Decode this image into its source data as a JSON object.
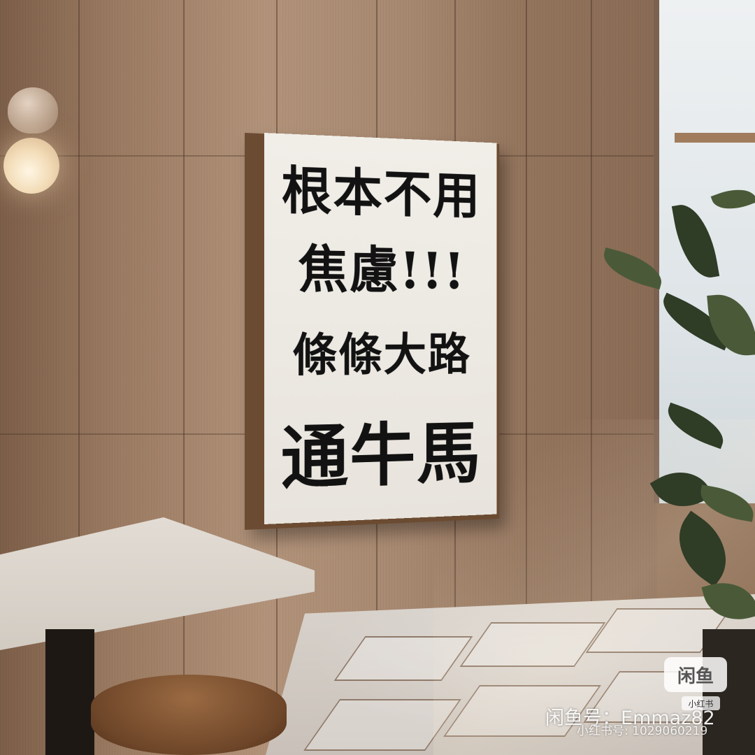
{
  "artwork": {
    "lines": [
      "根本不用",
      "焦慮!!!",
      "條條大路",
      "通牛馬"
    ]
  },
  "watermark": {
    "logo_text": "闲鱼",
    "sub_logo_text": "小红书",
    "xianyu_id": "闲鱼号：Emmaz82",
    "xiaohongshu_id": "小红书号: 1029060219"
  },
  "colors": {
    "wall": "#a78870",
    "canvas": "#efece6",
    "ink": "#121212",
    "frame": "#6b4b31"
  }
}
